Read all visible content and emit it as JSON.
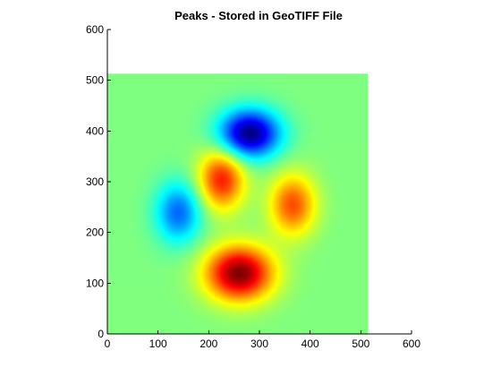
{
  "chart_data": {
    "type": "heatmap",
    "title": "Peaks - Stored in GeoTIFF File",
    "xlabel": "",
    "ylabel": "",
    "xlim": [
      0,
      600
    ],
    "ylim": [
      0,
      600
    ],
    "xticks": [
      "0",
      "100",
      "200",
      "300",
      "400",
      "500",
      "600"
    ],
    "yticks": [
      "0",
      "100",
      "200",
      "300",
      "400",
      "500",
      "600"
    ],
    "xtick_values": [
      0,
      100,
      200,
      300,
      400,
      500,
      600
    ],
    "ytick_values": [
      0,
      100,
      200,
      300,
      400,
      500,
      600
    ],
    "image_extent": {
      "x": [
        0,
        513
      ],
      "y": [
        0,
        513
      ]
    },
    "colormap": "jet",
    "grid": false,
    "features": [
      {
        "kind": "min",
        "x": 280,
        "y": 395,
        "level": -1.0
      },
      {
        "kind": "max",
        "x": 260,
        "y": 120,
        "level": 1.0
      },
      {
        "kind": "min",
        "x": 140,
        "y": 240,
        "level": -0.55
      },
      {
        "kind": "max",
        "x": 225,
        "y": 305,
        "level": 0.7
      },
      {
        "kind": "max",
        "x": 365,
        "y": 255,
        "level": 0.6
      }
    ]
  }
}
